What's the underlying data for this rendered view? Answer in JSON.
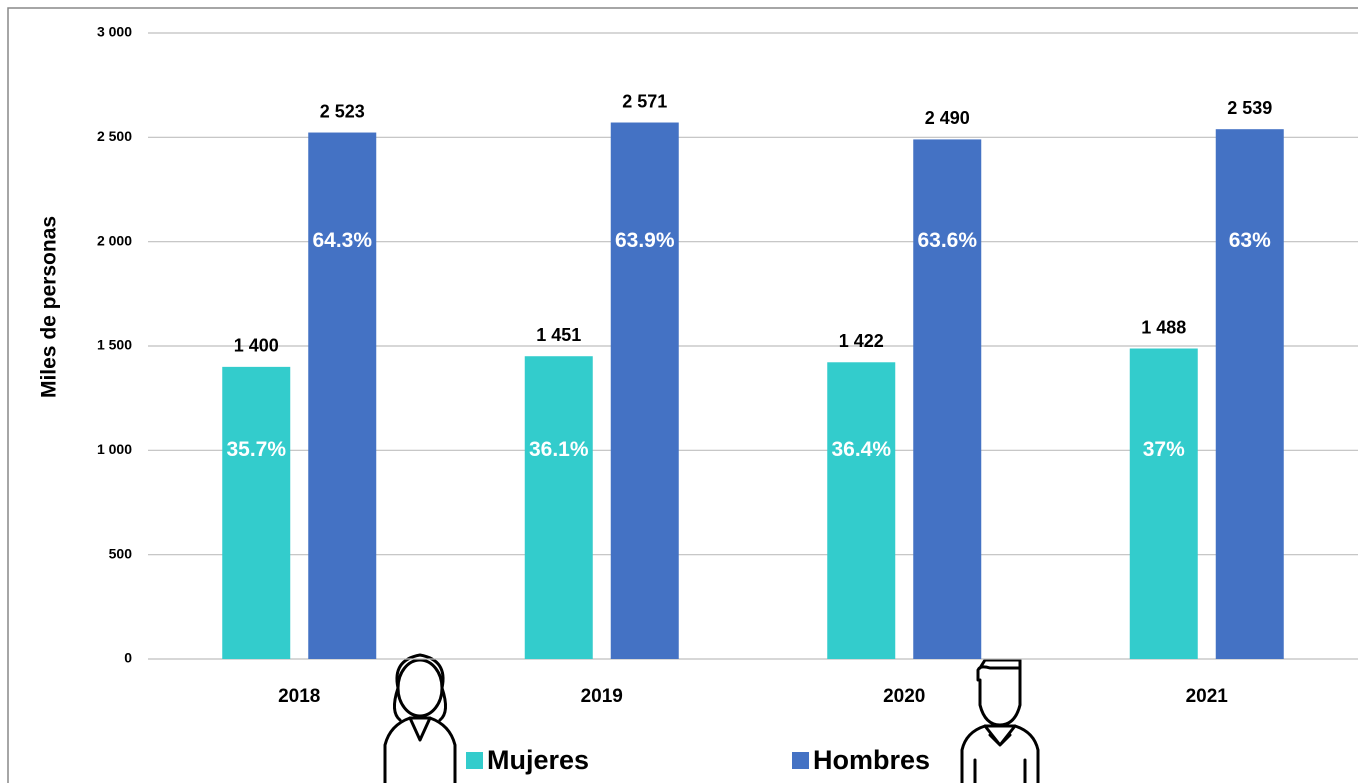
{
  "chart_data": {
    "type": "bar",
    "y_label": "Miles de personas",
    "categories": [
      "2018",
      "2019",
      "2020",
      "2021"
    ],
    "series": [
      {
        "name": "Mujeres",
        "color": "#33cccc",
        "values": [
          1400,
          1451,
          1422,
          1488
        ],
        "value_labels": [
          "1 400",
          "1 451",
          "1 422",
          "1 488"
        ],
        "percent_labels": [
          "35.7%",
          "36.1%",
          "36.4%",
          "37%"
        ]
      },
      {
        "name": "Hombres",
        "color": "#4472c4",
        "values": [
          2523,
          2571,
          2490,
          2539
        ],
        "value_labels": [
          "2 523",
          "2 571",
          "2 490",
          "2 539"
        ],
        "percent_labels": [
          "64.3%",
          "63.9%",
          "63.6%",
          "63%"
        ]
      }
    ],
    "ylim": [
      0,
      3000
    ],
    "yticks": [
      0,
      500,
      {
        "value": 1000,
        "label": "1 000"
      },
      {
        "value": 1500,
        "label": "1 500"
      },
      {
        "value": 2000,
        "label": "2 000"
      },
      {
        "value": 2500,
        "label": "2 500"
      },
      {
        "value": 3000,
        "label": "3 000"
      }
    ],
    "grid": true,
    "legend": "bottom"
  }
}
